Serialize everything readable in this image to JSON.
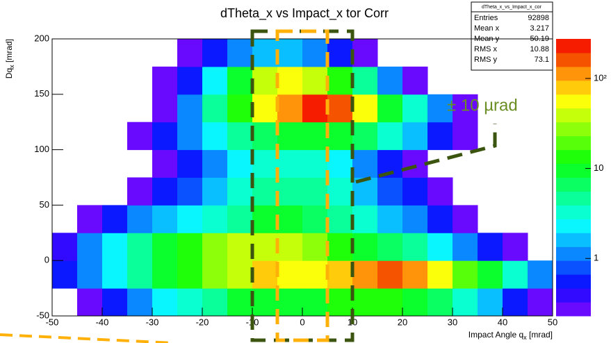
{
  "chart_data": {
    "type": "heatmap",
    "title": "dTheta_x vs Impact_x tor Corr",
    "x_label": {
      "main": "Impact Angle q",
      "sub": "x",
      "unit": " [mrad]"
    },
    "y_label": {
      "main": "Dq",
      "sub": "x",
      "unit": " [mrad]"
    },
    "x_bins": [
      -50,
      -45,
      -40,
      -35,
      -30,
      -25,
      -20,
      -15,
      -10,
      -5,
      0,
      5,
      10,
      15,
      20,
      25,
      30,
      35,
      40,
      45,
      50
    ],
    "y_bins": [
      -50,
      -25,
      0,
      25,
      50,
      75,
      100,
      125,
      150,
      175,
      200
    ],
    "values": [
      [
        0,
        0.3,
        0.5,
        1,
        2,
        3,
        5,
        8,
        10,
        10,
        10,
        12,
        15,
        15,
        10,
        6,
        3,
        1.5,
        0.6,
        0.3
      ],
      [
        0.5,
        1,
        2,
        4,
        8,
        15,
        25,
        40,
        70,
        60,
        50,
        80,
        120,
        150,
        100,
        50,
        20,
        8,
        3,
        1
      ],
      [
        0.4,
        1,
        2,
        4,
        8,
        15,
        25,
        35,
        40,
        35,
        25,
        15,
        10,
        6,
        4,
        2,
        1,
        0.5,
        0.3,
        0
      ],
      [
        0,
        0.3,
        0.5,
        1,
        1.5,
        2,
        3,
        5,
        8,
        8,
        7,
        5,
        3,
        1.5,
        1,
        0.5,
        0.3,
        0,
        0,
        0
      ],
      [
        0,
        0,
        0,
        0.3,
        0.5,
        0.8,
        1.5,
        3,
        5,
        5,
        5,
        3,
        1.5,
        0.8,
        0.5,
        0.3,
        0,
        0,
        0,
        0
      ],
      [
        0,
        0,
        0,
        0,
        0.3,
        0.5,
        1,
        2,
        3,
        3,
        3,
        2,
        1,
        0.5,
        0.3,
        0,
        0,
        0,
        0,
        0
      ],
      [
        0,
        0,
        0,
        0.3,
        0.5,
        1,
        2,
        4,
        6,
        8,
        10,
        10,
        6,
        3,
        1.5,
        0.5,
        0.3,
        0,
        0,
        0
      ],
      [
        0,
        0,
        0,
        0,
        0.3,
        1,
        4,
        15,
        50,
        120,
        200,
        150,
        50,
        10,
        3,
        1,
        0.3,
        0,
        0,
        0
      ],
      [
        0,
        0,
        0,
        0,
        0.3,
        0.5,
        2,
        10,
        40,
        60,
        40,
        15,
        4,
        1,
        0.3,
        0,
        0,
        0,
        0,
        0
      ],
      [
        0,
        0,
        0,
        0,
        0,
        0.3,
        0.5,
        1,
        1.5,
        1.5,
        1,
        0.5,
        0.3,
        0,
        0,
        0,
        0,
        0,
        0,
        0
      ]
    ],
    "xlim": [
      -50,
      50
    ],
    "ylim": [
      -50,
      200
    ],
    "xticks": [
      -50,
      -40,
      -30,
      -20,
      -10,
      0,
      10,
      20,
      30,
      40,
      50
    ],
    "yticks": [
      -50,
      0,
      50,
      100,
      150,
      200
    ],
    "zlim": [
      0.23,
      275
    ],
    "zscale": "log",
    "zticks": [
      1,
      10,
      {
        "value": 100,
        "label": "10²"
      }
    ],
    "stats": {
      "name": "dTheta_x_vs_Impact_x_cor",
      "rows": [
        [
          "Entries",
          "92898"
        ],
        [
          "Mean x",
          "3.217"
        ],
        [
          "Mean y",
          "50.19"
        ],
        [
          "RMS x",
          "10.88"
        ],
        [
          "RMS y",
          "73.1"
        ]
      ]
    },
    "regions": [
      {
        "x": [
          -10,
          10
        ],
        "color": "#3b5510"
      },
      {
        "x": [
          -5,
          5
        ],
        "color": "#ffb10a"
      }
    ],
    "annotation": {
      "text": "± 10 µrad",
      "color": "#6b8e23"
    }
  }
}
